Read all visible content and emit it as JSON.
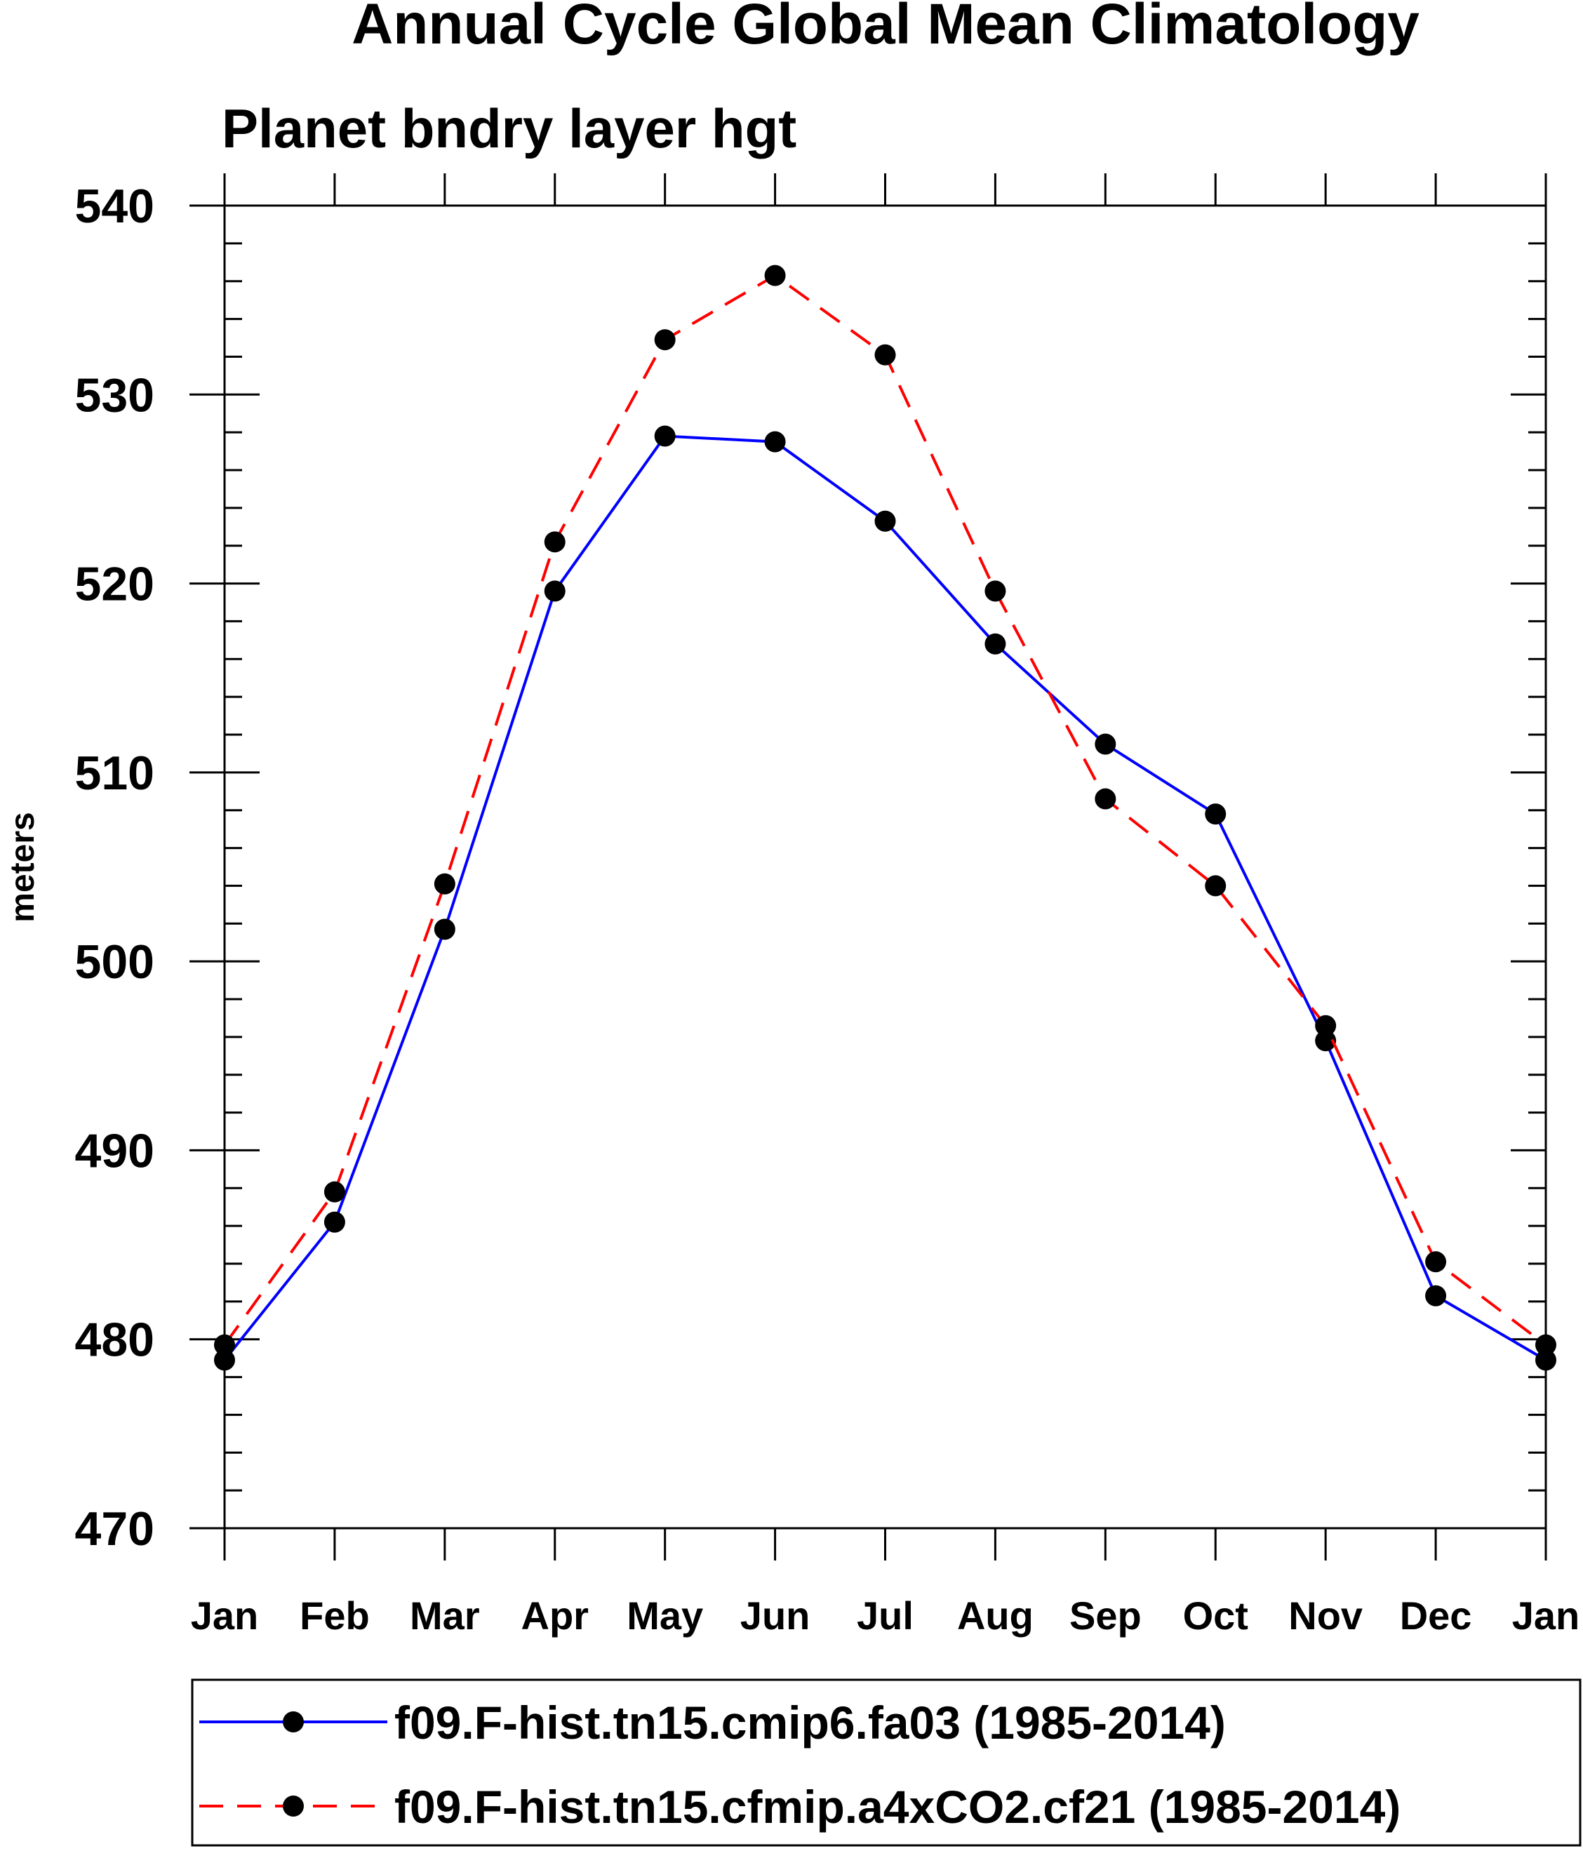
{
  "chart_data": {
    "type": "line",
    "title": "Annual Cycle Global Mean Climatology",
    "subtitle": "Planet bndry layer hgt",
    "xlabel": "",
    "ylabel": "meters",
    "categories": [
      "Jan",
      "Feb",
      "Mar",
      "Apr",
      "May",
      "Jun",
      "Jul",
      "Aug",
      "Sep",
      "Oct",
      "Nov",
      "Dec",
      "Jan"
    ],
    "ylim": [
      470,
      540
    ],
    "yticks": [
      470,
      480,
      490,
      500,
      510,
      520,
      530,
      540
    ],
    "ytick_labels": [
      "470",
      "480",
      "490",
      "500",
      "510",
      "520",
      "530",
      "540"
    ],
    "grid": false,
    "legend_position": "bottom",
    "series": [
      {
        "name": "f09.F-hist.tn15.cmip6.fa03 (1985-2014)",
        "color": "#0000ff",
        "line_style": "solid",
        "marker": "filled-circle",
        "values": [
          478.9,
          486.2,
          501.7,
          519.6,
          527.8,
          527.5,
          523.3,
          516.8,
          511.5,
          507.8,
          495.8,
          482.3,
          478.9
        ]
      },
      {
        "name": "f09.F-hist.tn15.cfmip.a4xCO2.cf21 (1985-2014)",
        "color": "#ff0000",
        "line_style": "dashed",
        "marker": "filled-circle",
        "values": [
          479.7,
          487.8,
          504.1,
          522.2,
          532.9,
          536.3,
          532.1,
          519.6,
          508.6,
          504.0,
          496.6,
          484.1,
          479.7
        ]
      }
    ]
  }
}
